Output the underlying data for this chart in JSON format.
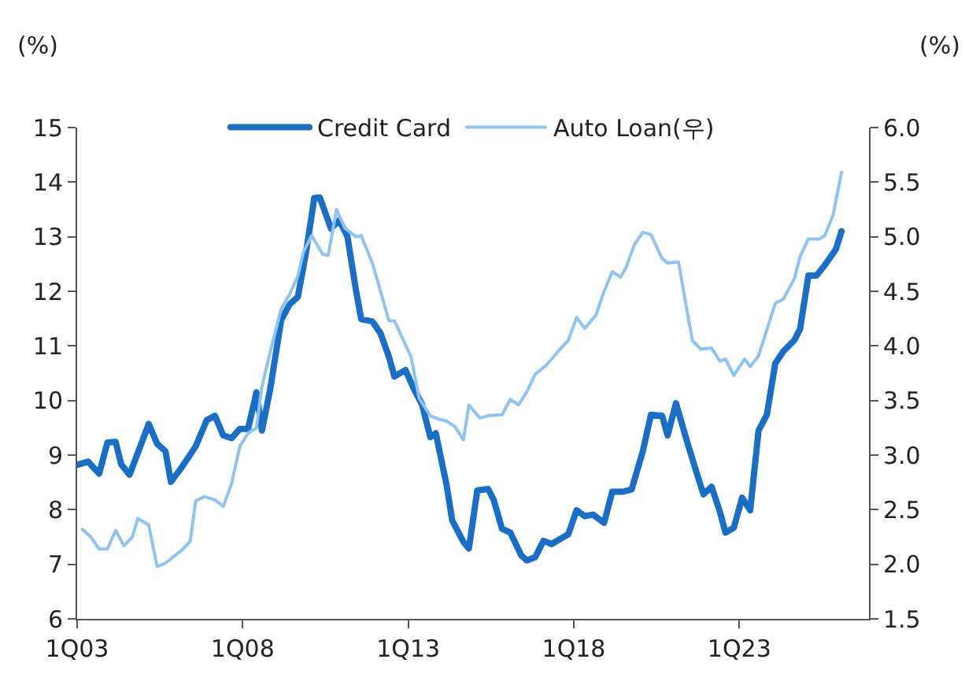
{
  "chart_data": {
    "type": "line",
    "ylabel": "(%)",
    "y2label": "(%)",
    "xlim": [
      "2003-01",
      "2026-12"
    ],
    "xticks": [
      {
        "value": "2003-01",
        "label": "1Q03"
      },
      {
        "value": "2008-01",
        "label": "1Q08"
      },
      {
        "value": "2013-01",
        "label": "1Q13"
      },
      {
        "value": "2018-01",
        "label": "1Q18"
      },
      {
        "value": "2023-01",
        "label": "1Q23"
      }
    ],
    "ylim": [
      6,
      15
    ],
    "yticks": [
      6,
      7,
      8,
      9,
      10,
      11,
      12,
      13,
      14,
      15
    ],
    "y2lim": [
      1.5,
      6.0
    ],
    "y2ticks": [
      {
        "value": 1.5,
        "label": "1.5"
      },
      {
        "value": 2,
        "label": "2.0"
      },
      {
        "value": 2.5,
        "label": "2.5"
      },
      {
        "value": 3,
        "label": "3.0"
      },
      {
        "value": 3.5,
        "label": "3.5"
      },
      {
        "value": 4,
        "label": "4.0"
      },
      {
        "value": 4.5,
        "label": "4.5"
      },
      {
        "value": 5,
        "label": "5.0"
      },
      {
        "value": 5.5,
        "label": "5.5"
      },
      {
        "value": 6,
        "label": "6.0"
      }
    ],
    "legend": "top",
    "marker": "none",
    "line_style": "solid",
    "series": [
      {
        "name": "Credit Card",
        "color": "#1a6fc4",
        "x": [
          "2003-01",
          "2003-05",
          "2003-09",
          "2003-12",
          "2004-03",
          "2004-05",
          "2004-08",
          "2005-03",
          "2005-06",
          "2005-09",
          "2005-11",
          "2006-03",
          "2006-08",
          "2006-12",
          "2007-03",
          "2007-06",
          "2007-09",
          "2007-12",
          "2008-03",
          "2008-06",
          "2008-08",
          "2008-11",
          "2009-03",
          "2009-06",
          "2009-09",
          "2009-12",
          "2010-03",
          "2010-05",
          "2010-09",
          "2010-12",
          "2011-03",
          "2011-06",
          "2011-08",
          "2011-12",
          "2012-03",
          "2012-06",
          "2012-08",
          "2012-12",
          "2013-03",
          "2013-06",
          "2013-09",
          "2013-11",
          "2014-03",
          "2014-05",
          "2014-09",
          "2014-11",
          "2015-02",
          "2015-06",
          "2015-08",
          "2015-11",
          "2016-02",
          "2016-06",
          "2016-08",
          "2016-11",
          "2017-02",
          "2017-05",
          "2017-08",
          "2017-11",
          "2018-02",
          "2018-05",
          "2018-08",
          "2018-12",
          "2019-03",
          "2019-07",
          "2019-10",
          "2020-02",
          "2020-05",
          "2020-09",
          "2020-11",
          "2021-02",
          "2021-06",
          "2021-09",
          "2021-12",
          "2022-03",
          "2022-06",
          "2022-08",
          "2022-11",
          "2023-02",
          "2023-05",
          "2023-08",
          "2023-11",
          "2024-02",
          "2024-05",
          "2024-09",
          "2024-11",
          "2025-02",
          "2025-05",
          "2025-08",
          "2025-12",
          "2026-02"
        ],
        "values": [
          8.82,
          8.88,
          8.66,
          9.23,
          9.24,
          8.83,
          8.64,
          9.57,
          9.21,
          9.07,
          8.51,
          8.78,
          9.16,
          9.64,
          9.72,
          9.36,
          9.31,
          9.48,
          9.48,
          10.15,
          9.45,
          10.22,
          11.47,
          11.76,
          11.9,
          12.72,
          13.71,
          13.72,
          13.15,
          13.3,
          13.01,
          12.05,
          11.49,
          11.45,
          11.23,
          10.8,
          10.44,
          10.56,
          10.22,
          9.93,
          9.33,
          9.4,
          8.44,
          7.8,
          7.41,
          7.29,
          8.35,
          8.38,
          8.18,
          7.65,
          7.58,
          7.16,
          7.07,
          7.13,
          7.43,
          7.37,
          7.46,
          7.55,
          7.99,
          7.88,
          7.91,
          7.76,
          8.33,
          8.33,
          8.37,
          9.07,
          9.74,
          9.72,
          9.36,
          9.95,
          9.26,
          8.76,
          8.28,
          8.42,
          7.96,
          7.58,
          7.67,
          8.22,
          7.99,
          9.45,
          9.74,
          10.68,
          10.9,
          11.11,
          11.31,
          12.29,
          12.29,
          12.48,
          12.77,
          13.1
        ]
      },
      {
        "name": "Auto Loan(우)",
        "color": "#8fc3f0",
        "axis": "y2",
        "x": [
          "2003-03",
          "2003-06",
          "2003-09",
          "2003-12",
          "2004-03",
          "2004-06",
          "2004-09",
          "2004-11",
          "2005-03",
          "2005-06",
          "2005-09",
          "2006-03",
          "2006-06",
          "2006-08",
          "2006-11",
          "2007-03",
          "2007-06",
          "2007-09",
          "2007-12",
          "2008-03",
          "2008-06",
          "2008-08",
          "2008-11",
          "2009-03",
          "2009-06",
          "2009-09",
          "2009-11",
          "2010-02",
          "2010-06",
          "2010-08",
          "2010-11",
          "2011-02",
          "2011-06",
          "2011-08",
          "2011-12",
          "2012-03",
          "2012-06",
          "2012-08",
          "2012-12",
          "2013-02",
          "2013-05",
          "2013-09",
          "2013-12",
          "2014-03",
          "2014-06",
          "2014-09",
          "2014-11",
          "2015-03",
          "2015-06",
          "2015-11",
          "2016-02",
          "2016-05",
          "2016-08",
          "2016-11",
          "2017-03",
          "2017-06",
          "2017-08",
          "2017-11",
          "2018-02",
          "2018-05",
          "2018-09",
          "2018-12",
          "2019-03",
          "2019-06",
          "2019-08",
          "2019-11",
          "2020-02",
          "2020-05",
          "2020-09",
          "2020-11",
          "2021-03",
          "2021-06",
          "2021-08",
          "2021-11",
          "2022-03",
          "2022-06",
          "2022-08",
          "2022-11",
          "2023-03",
          "2023-05",
          "2023-08",
          "2023-11",
          "2024-02",
          "2024-05",
          "2024-09",
          "2024-11",
          "2025-02",
          "2025-06",
          "2025-08",
          "2025-11",
          "2026-02"
        ],
        "values": [
          2.32,
          2.25,
          2.14,
          2.14,
          2.31,
          2.17,
          2.25,
          2.42,
          2.36,
          1.98,
          2.01,
          2.13,
          2.21,
          2.58,
          2.62,
          2.59,
          2.53,
          2.74,
          3.08,
          3.2,
          3.25,
          3.63,
          3.95,
          4.34,
          4.47,
          4.64,
          4.86,
          5.01,
          4.84,
          4.83,
          5.25,
          5.08,
          5.0,
          5.01,
          4.76,
          4.5,
          4.23,
          4.23,
          4.01,
          3.9,
          3.52,
          3.36,
          3.33,
          3.31,
          3.26,
          3.14,
          3.46,
          3.34,
          3.36,
          3.37,
          3.51,
          3.46,
          3.58,
          3.74,
          3.82,
          3.91,
          3.97,
          4.05,
          4.26,
          4.16,
          4.28,
          4.5,
          4.68,
          4.63,
          4.72,
          4.93,
          5.04,
          5.02,
          4.8,
          4.76,
          4.77,
          4.33,
          4.05,
          3.97,
          3.98,
          3.86,
          3.88,
          3.73,
          3.88,
          3.81,
          3.91,
          4.15,
          4.39,
          4.43,
          4.62,
          4.82,
          4.98,
          4.98,
          5.01,
          5.2,
          5.59
        ]
      }
    ]
  }
}
